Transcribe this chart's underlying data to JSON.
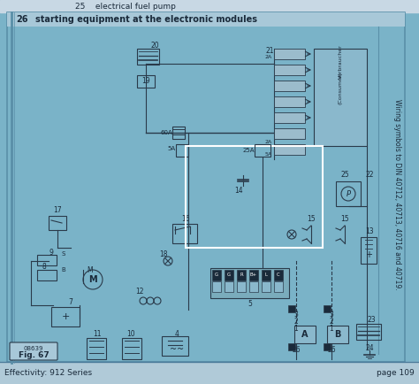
{
  "bg_color": "#7ab3c8",
  "header_bg": "#c8dce6",
  "title_top": "25    electrical fuel pump",
  "title_main_num": "26",
  "title_main_text": "starting equipment at the electronic modules",
  "footer_left": "Effectivity: 912 Series",
  "footer_right": "page 109",
  "fig_label": "Fig. 67",
  "fig_code": "08639",
  "side_text": "Wiring symbols to DIN 40712, 40713, 40716 and 40719.",
  "main_border_color": "#5a8fa8",
  "diagram_bg": "#7ab3c8",
  "line_color": "#2a3a4a",
  "highlight_box_color": "#ffffff",
  "component_color": "#2a3a4a",
  "text_color": "#1a2a3a",
  "header_line_color": "#4a7a9a"
}
